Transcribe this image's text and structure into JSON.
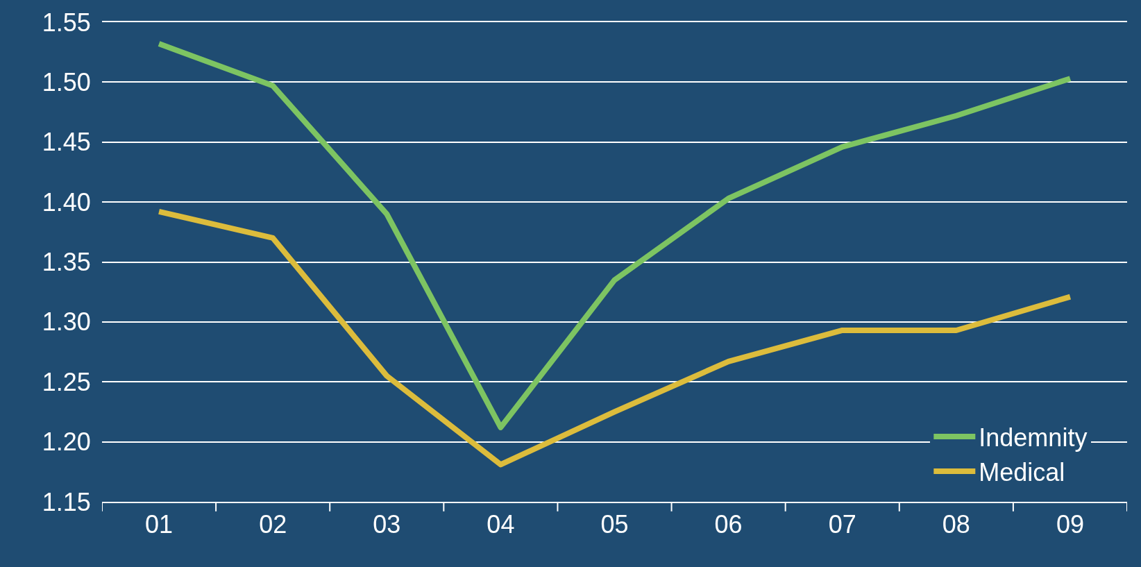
{
  "chart_data": {
    "type": "line",
    "categories": [
      "01",
      "02",
      "03",
      "04",
      "05",
      "06",
      "07",
      "08",
      "09"
    ],
    "series": [
      {
        "name": "Indemnity",
        "color": "#7dc462",
        "values": [
          1.532,
          1.497,
          1.39,
          1.212,
          1.335,
          1.403,
          1.446,
          1.472,
          1.503
        ]
      },
      {
        "name": "Medical",
        "color": "#dcbc3c",
        "values": [
          1.392,
          1.37,
          1.255,
          1.181,
          1.225,
          1.267,
          1.293,
          1.293,
          1.321
        ]
      }
    ],
    "ylim": [
      1.15,
      1.55
    ],
    "yticks": [
      1.15,
      {
        "value": 1.2,
        "label": "1.20"
      },
      1.25,
      {
        "value": 1.3,
        "label": "1.30"
      },
      1.35,
      {
        "value": 1.4,
        "label": "1.40"
      },
      1.45,
      {
        "value": 1.5,
        "label": "1.50"
      },
      1.55
    ],
    "grid": "y",
    "legend": "bottom right",
    "marker": "none",
    "line_style": "solid"
  }
}
